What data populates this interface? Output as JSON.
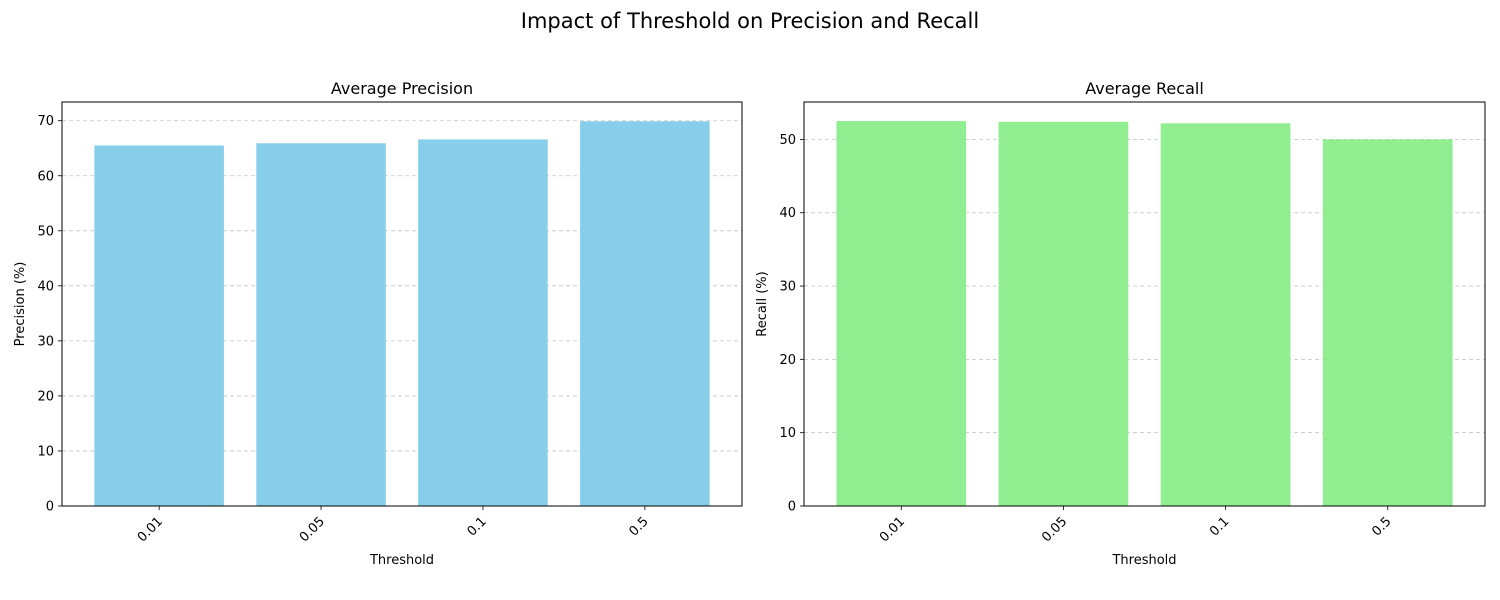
{
  "figure": {
    "title": "Impact of Threshold on Precision and Recall"
  },
  "chart_data": [
    {
      "type": "bar",
      "title": "Average Precision",
      "xlabel": "Threshold",
      "ylabel": "Precision (%)",
      "categories": [
        "0.01",
        "0.05",
        "0.1",
        "0.5"
      ],
      "values": [
        65.5,
        65.9,
        66.6,
        69.9
      ],
      "ylim": [
        0,
        73.4
      ],
      "yticks": [
        0,
        10,
        20,
        30,
        40,
        50,
        60,
        70
      ],
      "color": "#87ceeb",
      "grid": "y-dashed",
      "xtick_rotation": 45
    },
    {
      "type": "bar",
      "title": "Average Recall",
      "xlabel": "Threshold",
      "ylabel": "Recall (%)",
      "categories": [
        "0.01",
        "0.05",
        "0.1",
        "0.5"
      ],
      "values": [
        52.5,
        52.4,
        52.2,
        50.0
      ],
      "ylim": [
        0,
        55.1
      ],
      "yticks": [
        0,
        10,
        20,
        30,
        40,
        50
      ],
      "color": "#90ee90",
      "grid": "y-dashed",
      "xtick_rotation": 45
    }
  ]
}
